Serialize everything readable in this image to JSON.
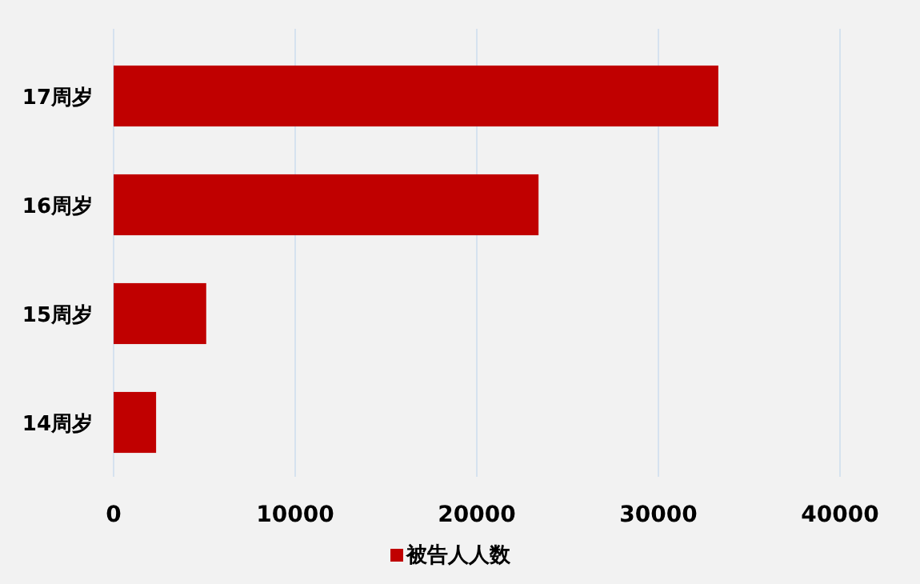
{
  "chart_data": {
    "type": "bar",
    "orientation": "horizontal",
    "categories": [
      "17周岁",
      "16周岁",
      "15周岁",
      "14周岁"
    ],
    "series": [
      {
        "name": "被告人人数",
        "color": "#c00000",
        "values": [
          33300,
          23400,
          5100,
          2340
        ]
      }
    ],
    "xlim": [
      0,
      40000
    ],
    "xticks": [
      0,
      10000,
      20000,
      30000,
      40000
    ],
    "grid": "x",
    "legend": "bottom"
  }
}
